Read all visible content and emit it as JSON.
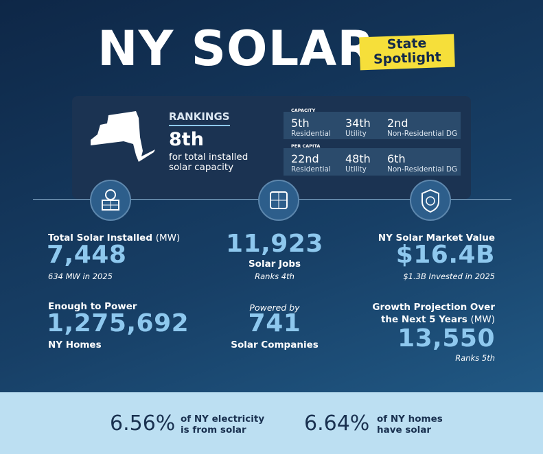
{
  "header": {
    "title": "NY SOLAR",
    "badge": [
      "State",
      "Spotlight"
    ]
  },
  "rankings": {
    "heading": "RANKINGS",
    "rank": "8th",
    "description": "for total installed solar capacity",
    "groups": [
      {
        "label": "CAPACITY",
        "items": [
          {
            "rank": "5th",
            "category": "Residential"
          },
          {
            "rank": "34th",
            "category": "Utility"
          },
          {
            "rank": "2nd",
            "category": "Non-Residential DG"
          }
        ]
      },
      {
        "label": "PER CAPITA",
        "items": [
          {
            "rank": "22nd",
            "category": "Residential"
          },
          {
            "rank": "48th",
            "category": "Utility"
          },
          {
            "rank": "6th",
            "category": "Non-Residential DG"
          }
        ]
      }
    ]
  },
  "stats": {
    "total_installed": {
      "label": "Total Solar Installed",
      "unit": "(MW)",
      "value": "7,448",
      "note": "634 MW in 2025"
    },
    "homes": {
      "label": "Enough to Power",
      "value": "1,275,692",
      "note": "NY Homes"
    },
    "jobs": {
      "value": "11,923",
      "label": "Solar Jobs",
      "note": "Ranks 4th"
    },
    "companies": {
      "intro": "Powered by",
      "value": "741",
      "label": "Solar Companies"
    },
    "market": {
      "label": "NY Solar Market Value",
      "value": "$16.4B",
      "note": "$1.3B Invested in 2025"
    },
    "growth": {
      "label": "Growth Projection Over the Next 5 Years",
      "unit": "(MW)",
      "value": "13,550",
      "note": "Ranks 5th"
    }
  },
  "footer": [
    {
      "value": "6.56%",
      "text": "of NY electricity is from solar"
    },
    {
      "value": "6.64%",
      "text": "of NY homes have solar"
    }
  ]
}
